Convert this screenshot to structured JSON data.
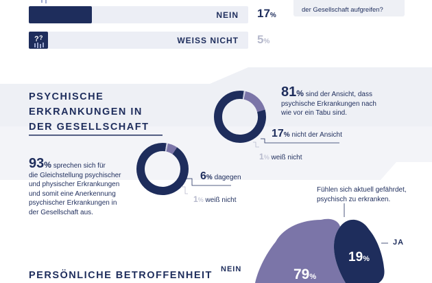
{
  "top_bars": {
    "rows": [
      {
        "label": "NEIN",
        "percent": "17",
        "unit": "%",
        "value": 17,
        "icon": "person-x-icon"
      },
      {
        "label": "WEISS NICHT",
        "percent": "5",
        "unit": "%",
        "value": 5,
        "icon": "question-person-icon"
      }
    ]
  },
  "top_callout": {
    "line1": "...",
    "line2": "der Gesellschaft aufgreifen?"
  },
  "section1": {
    "heading_lines": [
      "PSYCHISCHE",
      "ERKRANKUNGEN IN",
      "DER GESELLSCHAFT"
    ]
  },
  "donut_taboo": {
    "main_value": "81",
    "main_text_lines": [
      "sind der Ansicht, dass",
      "psychische Erkrankungen nach",
      "wie vor ein Tabu sind."
    ],
    "second_value": "17",
    "second_text": "nicht der Ansicht",
    "third_value": "1",
    "third_text": "weiß nicht",
    "unit": "%"
  },
  "donut_equality": {
    "main_value": "93",
    "main_text_lines": [
      "sprechen sich für",
      "die Gleichstellung psychischer",
      "und physischer Erkrankungen",
      "und somit eine Anerkennung",
      "psychischer Erkrankungen in",
      "der Gesellschaft aus."
    ],
    "second_value": "6",
    "second_text": "dagegen",
    "third_value": "1",
    "third_text": "weiß nicht",
    "unit": "%"
  },
  "section2": {
    "heading": "PERSÖNLICHE BETROFFENHEIT",
    "question_lines": [
      "Fühlen sich aktuell gefährdet,",
      "psychisch zu erkranken."
    ],
    "ja_label": "JA",
    "nein_label": "NEIN",
    "ja_value": "19",
    "nein_value": "79",
    "unit": "%"
  },
  "colors": {
    "navy": "#1e2d5c",
    "purple": "#7b75a8",
    "pale": "#c9cbe0",
    "band": "#eef0f5"
  },
  "chart_data": [
    {
      "type": "bar",
      "categories": [
        "NEIN",
        "WEISS NICHT"
      ],
      "values": [
        17,
        5
      ],
      "unit": "%"
    },
    {
      "type": "pie",
      "labels": [
        "sind der Ansicht, dass psychische Erkrankungen nach wie vor ein Tabu sind.",
        "nicht der Ansicht",
        "weiß nicht"
      ],
      "values": [
        81,
        17,
        1
      ],
      "unit": "%"
    },
    {
      "type": "pie",
      "labels": [
        "sprechen sich für die Gleichstellung psychischer und physischer Erkrankungen und somit eine Anerkennung psychischer Erkrankungen in der Gesellschaft aus.",
        "dagegen",
        "weiß nicht"
      ],
      "values": [
        93,
        6,
        1
      ],
      "unit": "%"
    },
    {
      "type": "pie",
      "labels": [
        "JA",
        "NEIN"
      ],
      "values": [
        19,
        79
      ],
      "unit": "%"
    }
  ]
}
